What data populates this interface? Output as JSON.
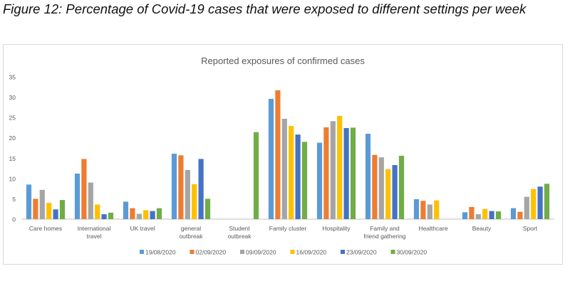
{
  "figure": {
    "caption": "Figure 12: Percentage of Covid-19 cases that were exposed to different settings per week"
  },
  "chart_data": {
    "type": "bar",
    "title": "Reported exposures of confirmed cases",
    "xlabel": "",
    "ylabel": "",
    "ylim": [
      0,
      35
    ],
    "yticks": [
      0,
      5,
      10,
      15,
      20,
      25,
      30,
      35
    ],
    "grid": false,
    "legend_position": "bottom",
    "categories": [
      [
        "Care homes"
      ],
      [
        "International",
        "travel"
      ],
      [
        "UK travel"
      ],
      [
        "general",
        "outbreak"
      ],
      [
        "Student",
        "outbreak"
      ],
      [
        "Family cluster"
      ],
      [
        "Hospitality"
      ],
      [
        "Family and",
        "friend gathering"
      ],
      [
        "Healthcare"
      ],
      [
        "Beauty"
      ],
      [
        "Sport"
      ]
    ],
    "series": [
      {
        "name": "19/08/2020",
        "color": "#5b9bd5",
        "values": [
          8.5,
          11.2,
          4.3,
          16.1,
          0,
          29.6,
          18.8,
          21.0,
          4.9,
          1.7,
          2.7
        ]
      },
      {
        "name": "02/09/2020",
        "color": "#ed7d31",
        "values": [
          5.0,
          14.8,
          2.7,
          15.7,
          0,
          31.7,
          22.6,
          15.8,
          4.5,
          3.0,
          1.8
        ]
      },
      {
        "name": "09/09/2020",
        "color": "#a5a5a5",
        "values": [
          7.2,
          9.0,
          1.3,
          12.1,
          0,
          24.7,
          24.1,
          15.2,
          3.6,
          1.2,
          5.5
        ]
      },
      {
        "name": "16/09/2020",
        "color": "#ffc000",
        "values": [
          4.0,
          3.6,
          2.2,
          8.6,
          0,
          22.9,
          25.4,
          12.3,
          4.6,
          2.5,
          7.4
        ]
      },
      {
        "name": "23/09/2020",
        "color": "#4472c4",
        "values": [
          2.4,
          1.2,
          2.0,
          14.8,
          0,
          20.8,
          22.4,
          13.3,
          0,
          2.0,
          8.0
        ]
      },
      {
        "name": "30/09/2020",
        "color": "#70ad47",
        "values": [
          4.7,
          1.6,
          2.7,
          5.0,
          21.4,
          19.0,
          22.5,
          15.6,
          0,
          1.9,
          8.7
        ]
      }
    ]
  }
}
